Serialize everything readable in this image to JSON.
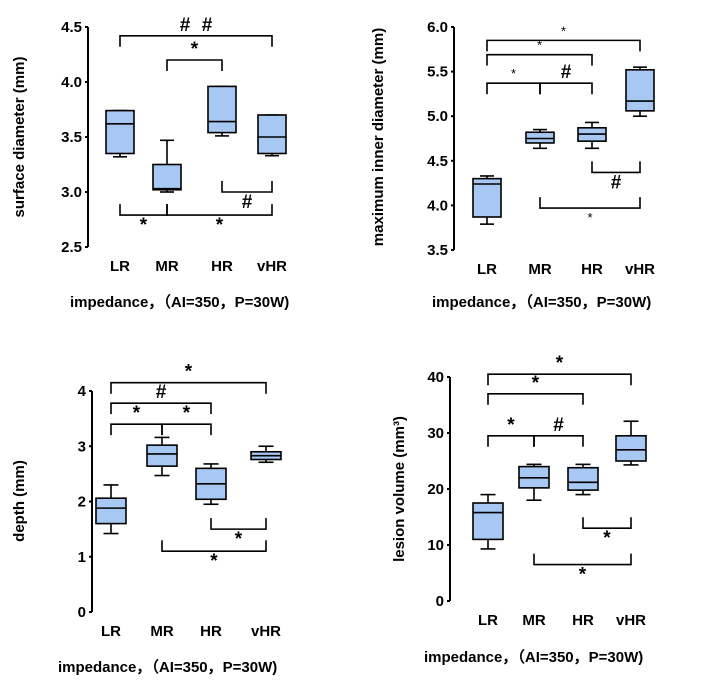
{
  "chart_data": [
    {
      "type": "boxplot",
      "ylabel": "surface diameter (mm)",
      "xlabel": "impedance，（AI=350，P=30W)",
      "categories": [
        "LR",
        "MR",
        "HR",
        "vHR"
      ],
      "ylim": [
        2.5,
        4.5
      ],
      "yticks": [
        "2.5",
        "3.0",
        "3.5",
        "4.0",
        "4.5"
      ],
      "series": [
        {
          "name": "LR",
          "min": 3.32,
          "q1": 3.35,
          "median": 3.62,
          "q3": 3.74,
          "max": 3.74
        },
        {
          "name": "MR",
          "min": 3.0,
          "q1": 3.02,
          "median": 3.03,
          "q3": 3.25,
          "max": 3.47
        },
        {
          "name": "HR",
          "min": 3.51,
          "q1": 3.54,
          "median": 3.64,
          "q3": 3.96,
          "max": 3.96
        },
        {
          "name": "vHR",
          "min": 3.33,
          "q1": 3.35,
          "median": 3.5,
          "q3": 3.7,
          "max": 3.7
        }
      ],
      "annotations": [
        {
          "groups": [
            "LR",
            "vHR"
          ],
          "side": "above",
          "value": 4.42,
          "label": "#",
          "labels": [
            "#",
            "#"
          ],
          "style": "large"
        },
        {
          "groups": [
            "MR",
            "HR"
          ],
          "side": "above",
          "value": 4.2,
          "label": "*",
          "style": "large"
        },
        {
          "groups": [
            "LR",
            "MR"
          ],
          "side": "below",
          "value": 2.79,
          "label": "*",
          "style": "large"
        },
        {
          "groups": [
            "MR",
            "vHR"
          ],
          "side": "below",
          "value": 2.79,
          "label": "*",
          "style": "large"
        },
        {
          "groups": [
            "HR",
            "vHR"
          ],
          "side": "below",
          "value": 3.0,
          "label": "#",
          "style": "large"
        }
      ]
    },
    {
      "type": "boxplot",
      "ylabel": "maximum inner diameter (mm)",
      "xlabel": "impedance，（AI=350，P=30W)",
      "categories": [
        "LR",
        "MR",
        "HR",
        "vHR"
      ],
      "ylim": [
        3.5,
        6.0
      ],
      "yticks": [
        "3.5",
        "4.0",
        "4.5",
        "5.0",
        "5.5",
        "6.0"
      ],
      "series": [
        {
          "name": "LR",
          "min": 3.79,
          "q1": 3.87,
          "median": 4.24,
          "q3": 4.3,
          "max": 4.33
        },
        {
          "name": "MR",
          "min": 4.64,
          "q1": 4.7,
          "median": 4.75,
          "q3": 4.82,
          "max": 4.85
        },
        {
          "name": "HR",
          "min": 4.64,
          "q1": 4.72,
          "median": 4.8,
          "q3": 4.87,
          "max": 4.93
        },
        {
          "name": "vHR",
          "min": 5.0,
          "q1": 5.06,
          "median": 5.17,
          "q3": 5.52,
          "max": 5.55
        }
      ],
      "annotations": [
        {
          "groups": [
            "LR",
            "vHR"
          ],
          "side": "above",
          "value": 5.85,
          "label": "*",
          "style": "small"
        },
        {
          "groups": [
            "LR",
            "HR"
          ],
          "side": "above",
          "value": 5.69,
          "label": "*",
          "style": "small"
        },
        {
          "groups": [
            "LR",
            "MR"
          ],
          "side": "above",
          "value": 5.37,
          "label": "*",
          "style": "small"
        },
        {
          "groups": [
            "MR",
            "HR"
          ],
          "side": "above",
          "value": 5.37,
          "label": "#",
          "style": "large"
        },
        {
          "groups": [
            "HR",
            "vHR"
          ],
          "side": "below",
          "value": 4.37,
          "label": "#",
          "style": "large"
        },
        {
          "groups": [
            "MR",
            "vHR"
          ],
          "side": "below",
          "value": 3.97,
          "label": "*",
          "style": "small"
        }
      ]
    },
    {
      "type": "boxplot",
      "ylabel": "depth (mm)",
      "xlabel": "impedance，（AI=350，P=30W)",
      "categories": [
        "LR",
        "MR",
        "HR",
        "vHR"
      ],
      "ylim": [
        0,
        4
      ],
      "yticks": [
        "0",
        "1",
        "2",
        "3",
        "4"
      ],
      "series": [
        {
          "name": "LR",
          "min": 1.42,
          "q1": 1.6,
          "median": 1.88,
          "q3": 2.06,
          "max": 2.3
        },
        {
          "name": "MR",
          "min": 2.47,
          "q1": 2.64,
          "median": 2.86,
          "q3": 3.02,
          "max": 3.16
        },
        {
          "name": "HR",
          "min": 1.95,
          "q1": 2.04,
          "median": 2.32,
          "q3": 2.6,
          "max": 2.68
        },
        {
          "name": "vHR",
          "min": 2.71,
          "q1": 2.76,
          "median": 2.83,
          "q3": 2.9,
          "max": 3.0
        }
      ],
      "annotations": [
        {
          "groups": [
            "LR",
            "vHR"
          ],
          "side": "above",
          "value": 4.15,
          "label": "*",
          "style": "large"
        },
        {
          "groups": [
            "LR",
            "HR"
          ],
          "side": "above",
          "value": 3.78,
          "label": "#",
          "style": "large"
        },
        {
          "groups": [
            "LR",
            "MR"
          ],
          "side": "above",
          "value": 3.4,
          "label": "*",
          "style": "large"
        },
        {
          "groups": [
            "MR",
            "HR"
          ],
          "side": "above",
          "value": 3.4,
          "label": "*",
          "style": "large"
        },
        {
          "groups": [
            "HR",
            "vHR"
          ],
          "side": "below",
          "value": 1.5,
          "label": "*",
          "style": "large"
        },
        {
          "groups": [
            "MR",
            "vHR"
          ],
          "side": "below",
          "value": 1.1,
          "label": "*",
          "style": "large"
        }
      ]
    },
    {
      "type": "boxplot",
      "ylabel": "lesion volume (mm³)",
      "xlabel": "impedance，（AI=350，P=30W)",
      "categories": [
        "LR",
        "MR",
        "HR",
        "vHR"
      ],
      "ylim": [
        0,
        40
      ],
      "yticks": [
        "0",
        "10",
        "20",
        "30",
        "40"
      ],
      "series": [
        {
          "name": "LR",
          "min": 9.3,
          "q1": 11.0,
          "median": 15.8,
          "q3": 17.5,
          "max": 19.0
        },
        {
          "name": "MR",
          "min": 18.0,
          "q1": 20.2,
          "median": 22.0,
          "q3": 24.0,
          "max": 24.4
        },
        {
          "name": "HR",
          "min": 19.0,
          "q1": 19.8,
          "median": 21.2,
          "q3": 23.8,
          "max": 24.4
        },
        {
          "name": "vHR",
          "min": 24.3,
          "q1": 25.0,
          "median": 27.0,
          "q3": 29.5,
          "max": 32.1
        }
      ],
      "annotations": [
        {
          "groups": [
            "LR",
            "vHR"
          ],
          "side": "above",
          "value": 40.5,
          "label": "*",
          "style": "large"
        },
        {
          "groups": [
            "LR",
            "HR"
          ],
          "side": "above",
          "value": 37.0,
          "label": "*",
          "style": "large"
        },
        {
          "groups": [
            "LR",
            "MR"
          ],
          "side": "above",
          "value": 29.5,
          "label": "*",
          "style": "large"
        },
        {
          "groups": [
            "MR",
            "HR"
          ],
          "side": "above",
          "value": 29.5,
          "label": "#",
          "style": "large"
        },
        {
          "groups": [
            "HR",
            "vHR"
          ],
          "side": "below",
          "value": 13.0,
          "label": "*",
          "style": "large"
        },
        {
          "groups": [
            "MR",
            "vHR"
          ],
          "side": "below",
          "value": 6.5,
          "label": "*",
          "style": "large"
        }
      ]
    }
  ]
}
